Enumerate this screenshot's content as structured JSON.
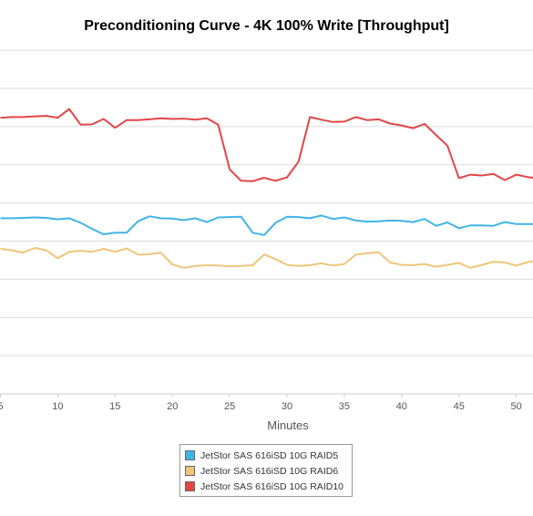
{
  "chart_data": {
    "type": "line",
    "title": "Preconditioning Curve - 4K 100% Write [Throughput]",
    "xlabel": "Minutes",
    "ylabel": "",
    "xlim": [
      5,
      51.5
    ],
    "ylim": [
      0,
      9.6
    ],
    "xticks": [
      5,
      10,
      15,
      20,
      25,
      30,
      35,
      40,
      45,
      50
    ],
    "xtick_labels": [
      "5",
      "10",
      "15",
      "20",
      "25",
      "30",
      "35",
      "40",
      "45",
      "50"
    ],
    "ygrid": [
      1,
      2,
      3,
      4,
      5,
      6,
      7,
      8,
      9
    ],
    "grid": true,
    "legend_position": "bottom",
    "x": [
      5,
      6,
      7,
      8,
      9,
      10,
      11,
      12,
      13,
      14,
      15,
      16,
      17,
      18,
      19,
      20,
      21,
      22,
      23,
      24,
      25,
      26,
      27,
      28,
      29,
      30,
      31,
      32,
      33,
      34,
      35,
      36,
      37,
      38,
      39,
      40,
      41,
      42,
      43,
      44,
      45,
      46,
      47,
      48,
      49,
      50,
      51,
      52
    ],
    "series": [
      {
        "name": "JetStor SAS 616iSD 10G RAID5",
        "color": "#3FB4E8",
        "values": [
          4.6,
          4.6,
          4.61,
          4.62,
          4.61,
          4.57,
          4.6,
          4.48,
          4.32,
          4.18,
          4.22,
          4.22,
          4.52,
          4.65,
          4.6,
          4.59,
          4.55,
          4.6,
          4.5,
          4.62,
          4.63,
          4.64,
          4.22,
          4.16,
          4.48,
          4.64,
          4.63,
          4.6,
          4.67,
          4.58,
          4.62,
          4.54,
          4.51,
          4.52,
          4.54,
          4.53,
          4.5,
          4.58,
          4.4,
          4.49,
          4.34,
          4.41,
          4.41,
          4.4,
          4.5,
          4.45,
          4.45,
          4.45
        ]
      },
      {
        "name": "JetStor SAS 616iSD 10G RAID6",
        "color": "#EEC67A",
        "values": [
          3.8,
          3.76,
          3.7,
          3.82,
          3.76,
          3.55,
          3.72,
          3.75,
          3.72,
          3.8,
          3.72,
          3.81,
          3.65,
          3.66,
          3.7,
          3.39,
          3.3,
          3.35,
          3.37,
          3.36,
          3.34,
          3.35,
          3.37,
          3.65,
          3.53,
          3.38,
          3.35,
          3.37,
          3.42,
          3.36,
          3.4,
          3.65,
          3.68,
          3.71,
          3.44,
          3.38,
          3.37,
          3.4,
          3.33,
          3.38,
          3.43,
          3.3,
          3.38,
          3.46,
          3.44,
          3.36,
          3.45,
          3.5
        ]
      },
      {
        "name": "JetStor SAS 616iSD 10G RAID10",
        "color": "#E34646",
        "values": [
          7.23,
          7.25,
          7.25,
          7.27,
          7.28,
          7.23,
          7.46,
          7.05,
          7.06,
          7.2,
          6.97,
          7.17,
          7.17,
          7.19,
          7.22,
          7.2,
          7.21,
          7.18,
          7.22,
          7.05,
          5.88,
          5.58,
          5.57,
          5.66,
          5.58,
          5.67,
          6.08,
          7.25,
          7.18,
          7.12,
          7.13,
          7.25,
          7.17,
          7.19,
          7.08,
          7.03,
          6.96,
          7.07,
          6.78,
          6.5,
          5.65,
          5.74,
          5.72,
          5.76,
          5.6,
          5.74,
          5.68,
          5.64
        ]
      }
    ]
  }
}
